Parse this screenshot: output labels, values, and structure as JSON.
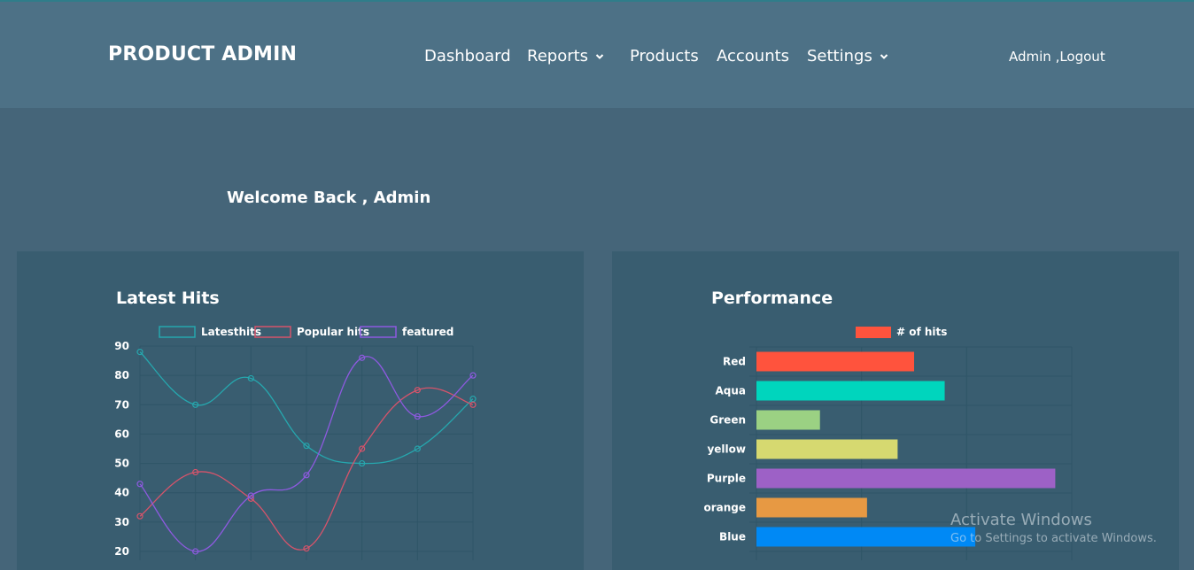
{
  "header": {
    "brand": "PRODUCT ADMIN",
    "nav": [
      {
        "label": "Dashboard",
        "dropdown": false
      },
      {
        "label": "Reports",
        "dropdown": true
      },
      {
        "label": "Products",
        "dropdown": false
      },
      {
        "label": "Accounts",
        "dropdown": false
      },
      {
        "label": "Settings",
        "dropdown": true
      }
    ],
    "user": "Admin ,Logout"
  },
  "welcome": "Welcome Back , Admin",
  "panels": {
    "latest_hits_title": "Latest Hits",
    "performance_title": "Performance"
  },
  "watermark": {
    "line1": "Activate Windows",
    "line2": "Go to Settings to activate Windows."
  },
  "colors": {
    "background": "#456579",
    "navbar": "#4d7186",
    "panel": "#395d70",
    "grid": "#2f5567"
  },
  "chart_data": [
    {
      "type": "line",
      "title": "Latest Hits",
      "x": [
        1,
        2,
        3,
        4,
        5,
        6,
        7
      ],
      "ylim": [
        20,
        90
      ],
      "yticks": [
        90,
        80,
        70,
        60,
        50,
        40,
        30,
        20
      ],
      "grid": true,
      "legend": "top",
      "series": [
        {
          "name": "Latesthits",
          "color": "#26a7ae",
          "values": [
            88,
            70,
            79,
            56,
            50,
            55,
            72
          ]
        },
        {
          "name": "Popular hits",
          "color": "#d6546b",
          "values": [
            32,
            47,
            38,
            21,
            55,
            75,
            70
          ]
        },
        {
          "name": "featured",
          "color": "#8e5ae0",
          "values": [
            43,
            20,
            39,
            46,
            86,
            66,
            80
          ]
        }
      ]
    },
    {
      "type": "bar",
      "orientation": "horizontal",
      "title": "Performance",
      "categories": [
        "Red",
        "Aqua",
        "Green",
        "yellow",
        "Purple",
        "orange",
        "Blue"
      ],
      "series": [
        {
          "name": "# of hits",
          "values": [
            33.5,
            40,
            13.5,
            30,
            63.5,
            23.5,
            46.5
          ]
        }
      ],
      "bar_colors": [
        "#ff533d",
        "#00d5bd",
        "#9bd183",
        "#d6d970",
        "#9d61c6",
        "#e79943",
        "#0089f5"
      ],
      "legend_color": "#ff533d",
      "xlim": [
        0,
        67
      ],
      "grid": true,
      "legend": "top"
    }
  ]
}
